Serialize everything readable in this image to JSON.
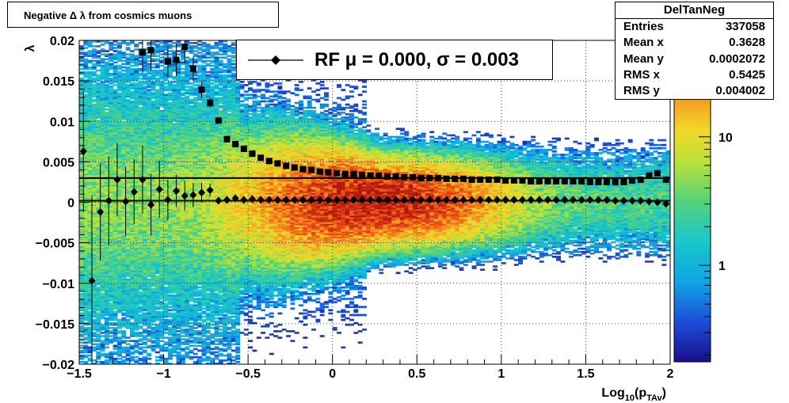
{
  "title": "Negative Δ λ from cosmics muons",
  "stats": {
    "name": "DelTanNeg",
    "rows": [
      {
        "label": "Entries",
        "value": "337058"
      },
      {
        "label": "Mean x",
        "value": "0.3628"
      },
      {
        "label": "Mean y",
        "value": "0.0002072"
      },
      {
        "label": "RMS x",
        "value": "0.5425"
      },
      {
        "label": "RMS y",
        "value": "0.004002"
      }
    ]
  },
  "legend": {
    "text": "RF μ =  0.000, σ =   0.003"
  },
  "chart_data": {
    "type": "heatmap",
    "title": "Negative Δ λ from cosmics muons",
    "xlabel_main": "Log",
    "xlabel_sub10": "10",
    "xlabel_open": "(p",
    "xlabel_sub": "TAv",
    "xlabel_close": ")",
    "ylabel": "λ",
    "xlim": [
      -1.5,
      2
    ],
    "ylim": [
      -0.02,
      0.02
    ],
    "log_z": true,
    "grid": true,
    "x_ticks": [
      "−1.5",
      "−1",
      "−0.5",
      "0",
      "0.5",
      "1",
      "1.5",
      "2"
    ],
    "y_ticks": [
      "−0.02",
      "−0.015",
      "−0.01",
      "−0.005",
      "0",
      "0.005",
      "0.01",
      "0.015",
      "0.02"
    ],
    "z_ticks": [
      "1",
      "10"
    ],
    "series": [
      {
        "marker": "diamond",
        "x": [
          -1.475,
          -1.425,
          -1.375,
          -1.325,
          -1.275,
          -1.225,
          -1.175,
          -1.125,
          -1.075,
          -1.025,
          -0.975,
          -0.925,
          -0.875,
          -0.825,
          -0.775,
          -0.725,
          -0.675,
          -0.625,
          -0.575,
          -0.525,
          -0.475,
          -0.425,
          -0.375,
          -0.325,
          -0.275,
          -0.225,
          -0.175,
          -0.125,
          -0.075,
          -0.025,
          0.025,
          0.075,
          0.125,
          0.175,
          0.225,
          0.275,
          0.325,
          0.375,
          0.425,
          0.475,
          0.525,
          0.575,
          0.625,
          0.675,
          0.725,
          0.775,
          0.825,
          0.875,
          0.925,
          0.975,
          1.025,
          1.075,
          1.125,
          1.175,
          1.225,
          1.275,
          1.325,
          1.375,
          1.425,
          1.475,
          1.525,
          1.575,
          1.625,
          1.675,
          1.725,
          1.775,
          1.825,
          1.875,
          1.925,
          1.975
        ],
        "y": [
          0.0063,
          -0.0097,
          -0.0012,
          0.0002,
          0.0028,
          0.0001,
          0.0013,
          0.0028,
          -0.0003,
          0.0016,
          0.0003,
          0.0014,
          0.0008,
          0.0009,
          0.0012,
          0.0015,
          0.0002,
          0.0003,
          0.0005,
          0.0003,
          0.0004,
          0.0003,
          0.0003,
          0.0003,
          0.0003,
          0.0003,
          0.0003,
          0.0003,
          0.0003,
          0.0003,
          0.0003,
          0.0003,
          0.0003,
          0.0003,
          0.0003,
          0.0003,
          0.0003,
          0.0003,
          0.0003,
          0.0003,
          0.0003,
          0.0003,
          0.0003,
          0.0003,
          0.0003,
          0.0003,
          0.0003,
          0.0003,
          0.0003,
          0.0003,
          0.0003,
          0.0003,
          0.0003,
          0.0003,
          0.0003,
          0.0003,
          0.0003,
          0.0003,
          0.0003,
          0.0003,
          0.0003,
          0.0003,
          0.0003,
          0.0002,
          0.0002,
          0.0002,
          0.0002,
          0.0001,
          0.0,
          -0.0002
        ],
        "yerr": [
          0.0075,
          0.0105,
          0.006,
          0.0055,
          0.0045,
          0.0043,
          0.004,
          0.0042,
          0.0038,
          0.0035,
          0.0025,
          0.002,
          0.0018,
          0.0015,
          0.0012,
          0.0008,
          0.0004,
          0.0003,
          0.0002,
          0.0001,
          0.0001,
          0.0001,
          0.0001,
          0.0001,
          0.0001,
          0.0001,
          0.0001,
          0.0001,
          0.0001,
          0.0001,
          0.0001,
          0.0001,
          0.0001,
          0.0001,
          0.0001,
          0.0001,
          0.0001,
          0.0001,
          0.0001,
          0.0001,
          0.0001,
          0.0001,
          0.0001,
          0.0001,
          0.0001,
          0.0001,
          0.0001,
          0.0001,
          0.0001,
          0.0001,
          0.0001,
          0.0001,
          0.0001,
          0.0001,
          0.0001,
          0.0001,
          0.0001,
          0.0001,
          0.0001,
          0.0001,
          0.0001,
          0.0001,
          0.0001,
          0.0001,
          0.0001,
          0.0001,
          0.0001,
          0.0001,
          0.0001,
          0.0001
        ]
      },
      {
        "marker": "square",
        "x": [
          -1.125,
          -1.075,
          -0.975,
          -0.925,
          -0.875,
          -0.825,
          -0.775,
          -0.725,
          -0.675,
          -0.625,
          -0.575,
          -0.525,
          -0.475,
          -0.425,
          -0.375,
          -0.325,
          -0.275,
          -0.225,
          -0.175,
          -0.125,
          -0.075,
          -0.025,
          0.025,
          0.075,
          0.125,
          0.175,
          0.225,
          0.275,
          0.325,
          0.375,
          0.425,
          0.475,
          0.525,
          0.575,
          0.625,
          0.675,
          0.725,
          0.775,
          0.825,
          0.875,
          0.925,
          0.975,
          1.025,
          1.075,
          1.125,
          1.175,
          1.225,
          1.275,
          1.325,
          1.375,
          1.425,
          1.475,
          1.525,
          1.575,
          1.625,
          1.675,
          1.725,
          1.775,
          1.825,
          1.875,
          1.925,
          1.975
        ],
        "y": [
          0.0185,
          0.0188,
          0.0174,
          0.0176,
          0.0192,
          0.0165,
          0.0139,
          0.0123,
          0.0101,
          0.0078,
          0.0072,
          0.0066,
          0.006,
          0.0055,
          0.0051,
          0.0048,
          0.0045,
          0.0043,
          0.0041,
          0.004,
          0.0038,
          0.0037,
          0.0036,
          0.0035,
          0.0035,
          0.0034,
          0.0033,
          0.0033,
          0.0032,
          0.0032,
          0.0031,
          0.0031,
          0.003,
          0.003,
          0.003,
          0.0029,
          0.0029,
          0.0029,
          0.0028,
          0.0028,
          0.0028,
          0.0028,
          0.0027,
          0.0027,
          0.0027,
          0.0026,
          0.0026,
          0.0026,
          0.0026,
          0.0026,
          0.0026,
          0.0026,
          0.0025,
          0.0025,
          0.0025,
          0.0025,
          0.0025,
          0.0027,
          0.0028,
          0.0033,
          0.0036,
          0.0028
        ],
        "yerr": [
          0.0025,
          0.0025,
          0.002,
          0.002,
          0.002,
          0.0015,
          0.001,
          0.0006,
          0.0003,
          0.0002,
          0.0001,
          0.0001,
          0.0001,
          0.0001,
          0.0001,
          0.0001,
          0.0001,
          0.0001,
          0.0001,
          0.0001,
          0.0001,
          0.0001,
          0.0001,
          0.0001,
          0.0001,
          0.0001,
          0.0001,
          0.0001,
          0.0001,
          0.0001,
          0.0001,
          0.0001,
          0.0001,
          0.0001,
          0.0001,
          0.0001,
          0.0001,
          0.0001,
          0.0001,
          0.0001,
          0.0001,
          0.0001,
          0.0001,
          0.0001,
          0.0001,
          0.0001,
          0.0001,
          0.0001,
          0.0001,
          0.0001,
          0.0001,
          0.0001,
          0.0001,
          0.0001,
          0.0001,
          0.0001,
          0.0001,
          0.0001,
          0.0001,
          0.0001,
          0.0001,
          0.0001
        ]
      }
    ],
    "fit_lines": [
      {
        "y_left": 0.0002,
        "y_right": 0.0002
      },
      {
        "y_left": 0.003,
        "y_right": 0.003
      }
    ]
  }
}
